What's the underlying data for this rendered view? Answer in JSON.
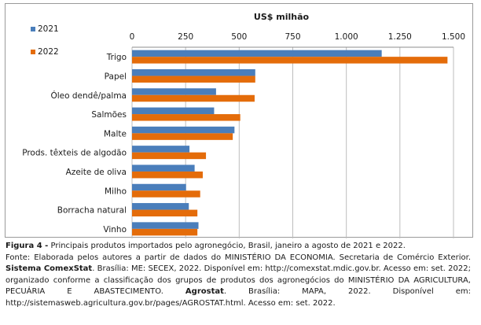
{
  "chart_data": {
    "type": "bar",
    "orientation": "horizontal",
    "title": "US$ milhão",
    "categories": [
      "Trigo",
      "Papel",
      "Óleo dendê/palma",
      "Salmões",
      "Malte",
      "Prods. têxteis de algodão",
      "Azeite de oliva",
      "Milho",
      "Borracha natural",
      "Vinho"
    ],
    "series": [
      {
        "name": "2021",
        "color": "#4a7ebb",
        "values": [
          1165,
          575,
          392,
          383,
          478,
          268,
          292,
          252,
          265,
          310
        ]
      },
      {
        "name": "2022",
        "color": "#e46c0a",
        "values": [
          1472,
          575,
          572,
          505,
          470,
          345,
          330,
          318,
          305,
          305
        ]
      }
    ],
    "xlim": [
      0,
      1500
    ],
    "ticks": [
      {
        "value": 0,
        "label": "0"
      },
      {
        "value": 250,
        "label": "250"
      },
      {
        "value": 500,
        "label": "500"
      },
      {
        "value": 750,
        "label": "750"
      },
      {
        "value": 1000,
        "label": "1.000"
      },
      {
        "value": 1250,
        "label": "1.250"
      },
      {
        "value": 1500,
        "label": "1.500"
      }
    ],
    "axis_position": "top",
    "grid": true,
    "legend": "top-left"
  },
  "caption": {
    "figure_label": "Figura 4 -",
    "figure_text": " Principais produtos importados pelo agronegócio, Brasil, janeiro a agosto de 2021 e 2022.",
    "source_a": "Fonte: Elaborada pelos autores a partir de dados do MINISTÉRIO DA ECONOMIA. Secretaria de Comércio Exterior. ",
    "source_b": "Sistema ComexStat",
    "source_c": ". Brasília: ME: SECEX, 2022. Disponível em: http://comexstat.mdic.gov.br. Acesso em: set. 2022; organizado conforme a classificação dos grupos de produtos dos agronegócios do MINISTÉRIO DA AGRICULTURA, PECUÁRIA E ABASTECIMENTO. ",
    "source_d": "Agrostat",
    "source_e": ". Brasília: MAPA, 2022. Disponível em: http://sistemasweb.agricultura.gov.br/pages/AGROSTAT.html. Acesso em: set. 2022."
  }
}
